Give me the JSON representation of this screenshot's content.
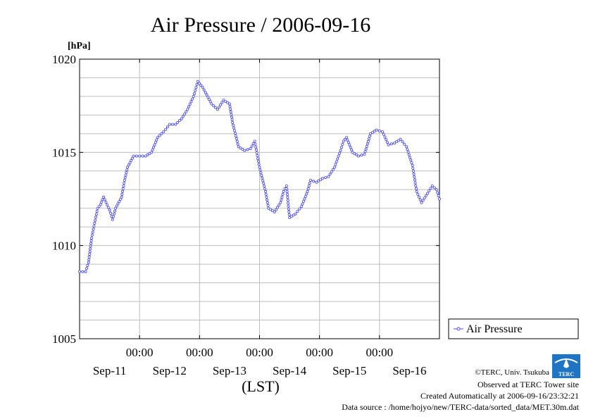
{
  "chart_data": {
    "type": "line",
    "title": "Air Pressure / 2006-09-16",
    "ylabel_unit": "[hPa]",
    "xlabel": "(LST)",
    "ylim": [
      1005,
      1020
    ],
    "xlim": [
      0,
      6
    ],
    "yticks": [
      "1005",
      "1010",
      "1015",
      "1020"
    ],
    "x_time_labels": [
      "00:00",
      "00:00",
      "00:00",
      "00:00",
      "00:00"
    ],
    "x_date_labels": [
      "Sep-11",
      "Sep-12",
      "Sep-13",
      "Sep-14",
      "Sep-15",
      "Sep-16"
    ],
    "grid": true,
    "legend_position": "right",
    "series": [
      {
        "name": "Air Pressure",
        "color": "#4a4af0",
        "marker": "circle",
        "points": [
          [
            0.0,
            1008.6
          ],
          [
            0.1,
            1008.6
          ],
          [
            0.15,
            1009.1
          ],
          [
            0.2,
            1010.4
          ],
          [
            0.25,
            1011.2
          ],
          [
            0.3,
            1012.0
          ],
          [
            0.35,
            1012.2
          ],
          [
            0.4,
            1012.6
          ],
          [
            0.5,
            1011.9
          ],
          [
            0.55,
            1011.4
          ],
          [
            0.6,
            1012.0
          ],
          [
            0.7,
            1012.6
          ],
          [
            0.75,
            1013.5
          ],
          [
            0.8,
            1014.2
          ],
          [
            0.9,
            1014.8
          ],
          [
            1.0,
            1014.8
          ],
          [
            1.1,
            1014.8
          ],
          [
            1.2,
            1015.0
          ],
          [
            1.3,
            1015.8
          ],
          [
            1.4,
            1016.1
          ],
          [
            1.5,
            1016.5
          ],
          [
            1.6,
            1016.5
          ],
          [
            1.7,
            1016.8
          ],
          [
            1.8,
            1017.3
          ],
          [
            1.9,
            1018.0
          ],
          [
            1.97,
            1018.8
          ],
          [
            2.05,
            1018.5
          ],
          [
            2.1,
            1018.2
          ],
          [
            2.2,
            1017.6
          ],
          [
            2.3,
            1017.3
          ],
          [
            2.4,
            1017.8
          ],
          [
            2.5,
            1017.6
          ],
          [
            2.55,
            1016.6
          ],
          [
            2.65,
            1015.3
          ],
          [
            2.75,
            1015.1
          ],
          [
            2.85,
            1015.2
          ],
          [
            2.92,
            1015.6
          ],
          [
            3.0,
            1014.2
          ],
          [
            3.1,
            1012.9
          ],
          [
            3.15,
            1012.0
          ],
          [
            3.25,
            1011.8
          ],
          [
            3.35,
            1012.3
          ],
          [
            3.4,
            1012.9
          ],
          [
            3.45,
            1013.2
          ],
          [
            3.5,
            1011.5
          ],
          [
            3.6,
            1011.7
          ],
          [
            3.7,
            1012.1
          ],
          [
            3.8,
            1012.9
          ],
          [
            3.85,
            1013.5
          ],
          [
            3.95,
            1013.4
          ],
          [
            4.05,
            1013.6
          ],
          [
            4.15,
            1013.7
          ],
          [
            4.25,
            1014.2
          ],
          [
            4.35,
            1015.1
          ],
          [
            4.4,
            1015.6
          ],
          [
            4.45,
            1015.8
          ],
          [
            4.55,
            1015.0
          ],
          [
            4.65,
            1014.8
          ],
          [
            4.75,
            1014.9
          ],
          [
            4.85,
            1016.0
          ],
          [
            4.95,
            1016.2
          ],
          [
            5.05,
            1016.1
          ],
          [
            5.15,
            1015.4
          ],
          [
            5.25,
            1015.5
          ],
          [
            5.35,
            1015.7
          ],
          [
            5.45,
            1015.3
          ],
          [
            5.55,
            1014.3
          ],
          [
            5.62,
            1012.9
          ],
          [
            5.7,
            1012.3
          ],
          [
            5.8,
            1012.8
          ],
          [
            5.88,
            1013.2
          ],
          [
            5.95,
            1013.0
          ],
          [
            6.0,
            1012.5
          ]
        ]
      }
    ]
  },
  "footer": {
    "copyright": "©TERC, Univ. Tsukuba",
    "observed": "Observed at TERC Tower site",
    "created": "Created Automatically at 2006-09-16/23:32:21",
    "source": "Data source : /home/hojyo/new/TERC-data/sorted_data/MET.30m.dat",
    "logo_text": "TERC"
  }
}
